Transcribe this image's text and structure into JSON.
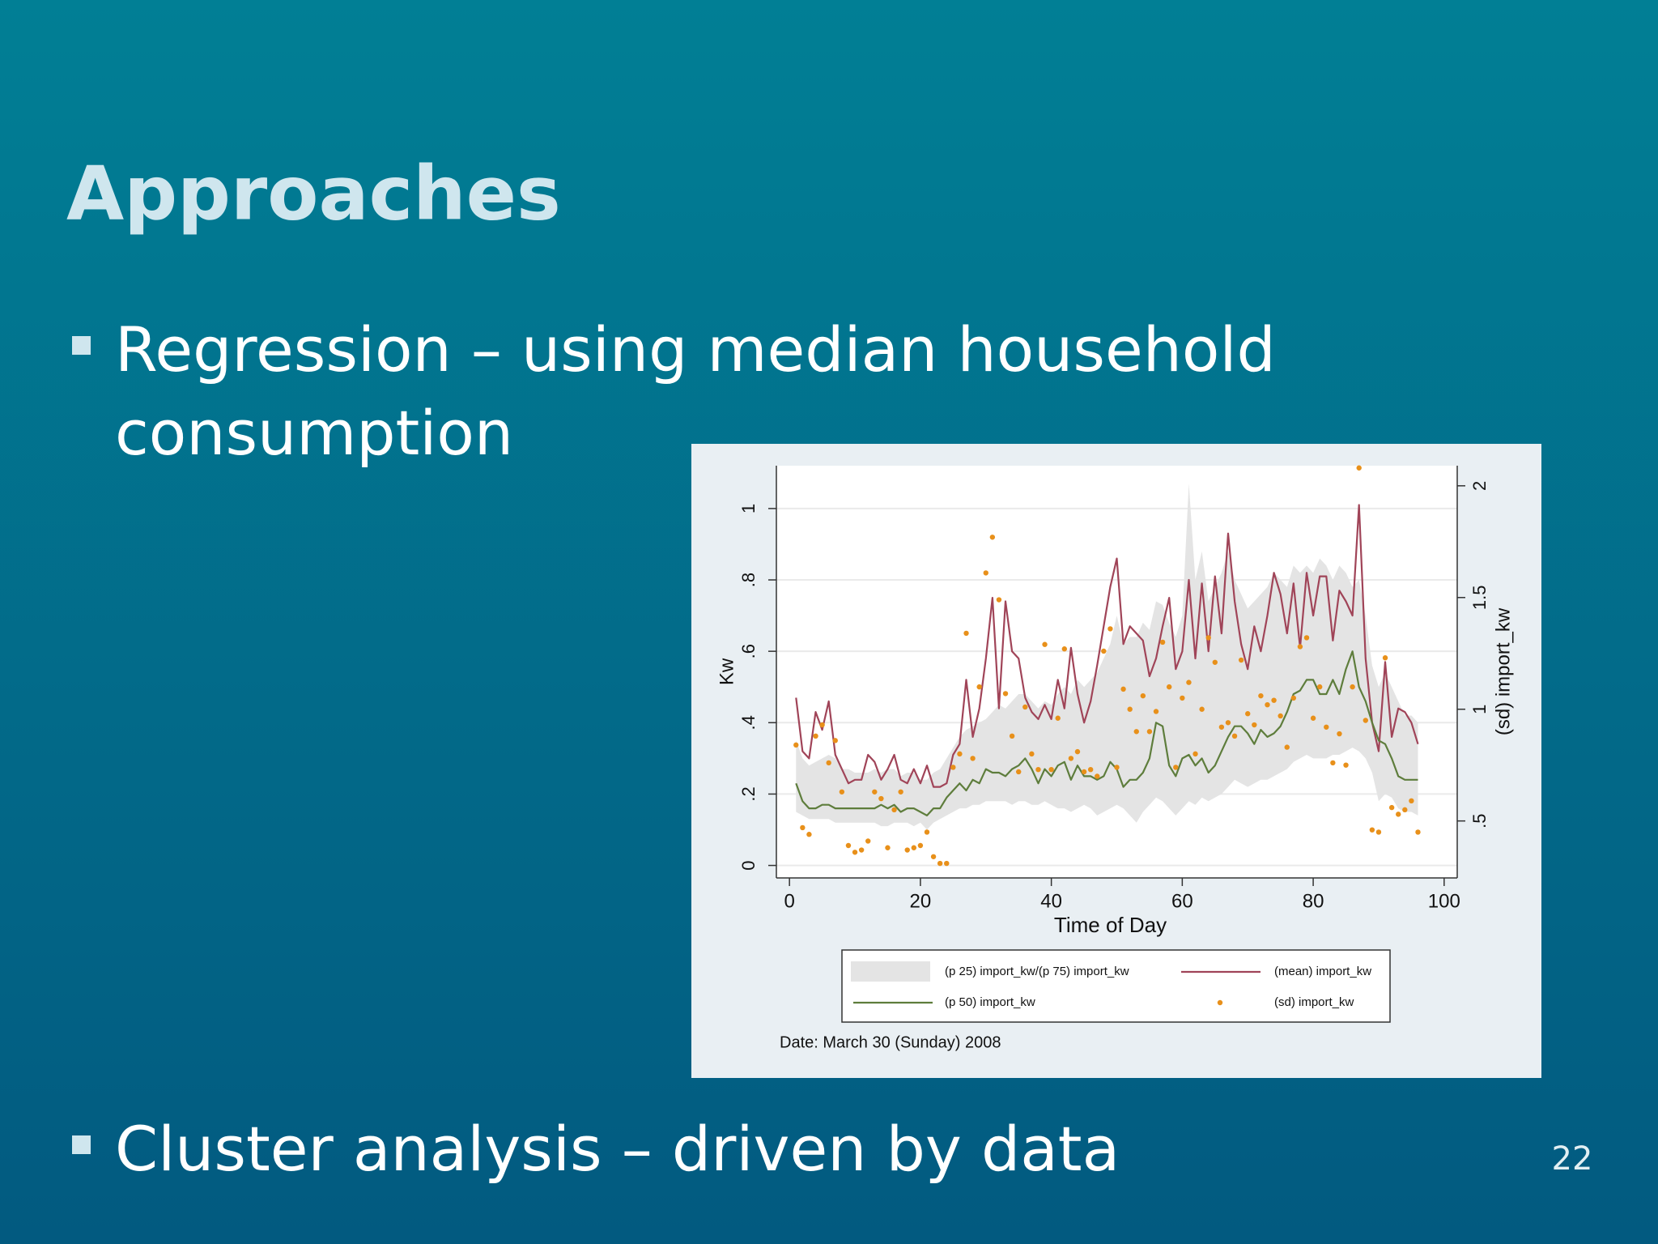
{
  "slide": {
    "title": "Approaches",
    "bullets": [
      {
        "lines": [
          "Regression – using median household",
          "consumption"
        ]
      },
      {
        "lines": [
          "Cluster analysis – driven by data"
        ]
      }
    ],
    "page_number": "22"
  },
  "chart_data": {
    "type": "line",
    "y_label": "Kw",
    "y2_label": "(sd) import_kw",
    "x_label": "Time of Day",
    "note": "Date: March 30 (Sunday) 2008",
    "xlim": [
      -2,
      102
    ],
    "xticks": [
      0,
      20,
      40,
      60,
      80,
      100
    ],
    "ylim": [
      -0.035,
      1.12
    ],
    "yticks": [
      0,
      {
        "value": 0.2,
        "label": ".2"
      },
      {
        "value": 0.4,
        "label": ".4"
      },
      {
        "value": 0.6,
        "label": ".6"
      },
      {
        "value": 0.8,
        "label": ".8"
      },
      1
    ],
    "y2lim": [
      0.245,
      2.09
    ],
    "y2ticks": [
      {
        "value": 0.5,
        "label": ".5"
      },
      1,
      1.5,
      2
    ],
    "grid": true,
    "x": [
      1,
      2,
      3,
      4,
      5,
      6,
      7,
      8,
      9,
      10,
      11,
      12,
      13,
      14,
      15,
      16,
      17,
      18,
      19,
      20,
      21,
      22,
      23,
      24,
      25,
      26,
      27,
      28,
      29,
      30,
      31,
      32,
      33,
      34,
      35,
      36,
      37,
      38,
      39,
      40,
      41,
      42,
      43,
      44,
      45,
      46,
      47,
      48,
      49,
      50,
      51,
      52,
      53,
      54,
      55,
      56,
      57,
      58,
      59,
      60,
      61,
      62,
      63,
      64,
      65,
      66,
      67,
      68,
      69,
      70,
      71,
      72,
      73,
      74,
      75,
      76,
      77,
      78,
      79,
      80,
      81,
      82,
      83,
      84,
      85,
      86,
      87,
      88,
      89,
      90,
      91,
      92,
      93,
      94,
      95,
      96
    ],
    "band": {
      "name": "(p 25) import_kw/(p 75) import_kw",
      "color": "#e4e4e4",
      "lower": [
        0.15,
        0.14,
        0.13,
        0.13,
        0.13,
        0.13,
        0.12,
        0.12,
        0.12,
        0.12,
        0.12,
        0.12,
        0.12,
        0.11,
        0.11,
        0.12,
        0.12,
        0.12,
        0.11,
        0.12,
        0.1,
        0.12,
        0.13,
        0.14,
        0.15,
        0.16,
        0.16,
        0.17,
        0.17,
        0.18,
        0.18,
        0.18,
        0.18,
        0.17,
        0.18,
        0.18,
        0.17,
        0.17,
        0.18,
        0.17,
        0.16,
        0.16,
        0.15,
        0.16,
        0.17,
        0.16,
        0.14,
        0.15,
        0.16,
        0.17,
        0.16,
        0.14,
        0.12,
        0.15,
        0.17,
        0.19,
        0.18,
        0.16,
        0.14,
        0.16,
        0.18,
        0.17,
        0.19,
        0.18,
        0.19,
        0.2,
        0.22,
        0.24,
        0.23,
        0.22,
        0.23,
        0.24,
        0.24,
        0.25,
        0.26,
        0.27,
        0.29,
        0.3,
        0.31,
        0.3,
        0.3,
        0.3,
        0.31,
        0.31,
        0.32,
        0.33,
        0.32,
        0.3,
        0.26,
        0.18,
        0.2,
        0.19,
        0.16,
        0.15,
        0.15,
        0.14
      ],
      "upper": [
        0.35,
        0.3,
        0.28,
        0.29,
        0.3,
        0.31,
        0.3,
        0.27,
        0.27,
        0.26,
        0.26,
        0.26,
        0.27,
        0.26,
        0.27,
        0.27,
        0.25,
        0.26,
        0.26,
        0.24,
        0.24,
        0.26,
        0.27,
        0.3,
        0.33,
        0.36,
        0.38,
        0.39,
        0.4,
        0.41,
        0.43,
        0.45,
        0.44,
        0.46,
        0.48,
        0.48,
        0.46,
        0.44,
        0.46,
        0.45,
        0.48,
        0.5,
        0.48,
        0.52,
        0.5,
        0.52,
        0.54,
        0.58,
        0.62,
        0.7,
        0.62,
        0.64,
        0.64,
        0.68,
        0.66,
        0.74,
        0.73,
        0.68,
        0.64,
        0.7,
        1.07,
        0.8,
        0.88,
        0.74,
        0.78,
        0.82,
        0.88,
        0.8,
        0.76,
        0.72,
        0.74,
        0.76,
        0.78,
        0.82,
        0.8,
        0.78,
        0.84,
        0.82,
        0.84,
        0.82,
        0.86,
        0.84,
        0.8,
        0.84,
        0.82,
        0.78,
        0.8,
        0.7,
        0.56,
        0.5,
        0.54,
        0.5,
        0.46,
        0.42,
        0.42,
        0.4
      ]
    },
    "series": [
      {
        "name": "(mean) import_kw",
        "color": "#a04458",
        "values": [
          0.47,
          0.32,
          0.3,
          0.43,
          0.38,
          0.46,
          0.31,
          0.27,
          0.23,
          0.24,
          0.24,
          0.31,
          0.29,
          0.24,
          0.27,
          0.31,
          0.24,
          0.23,
          0.27,
          0.23,
          0.28,
          0.22,
          0.22,
          0.23,
          0.31,
          0.34,
          0.52,
          0.36,
          0.44,
          0.58,
          0.75,
          0.44,
          0.74,
          0.6,
          0.58,
          0.47,
          0.43,
          0.41,
          0.45,
          0.41,
          0.52,
          0.44,
          0.61,
          0.48,
          0.4,
          0.46,
          0.56,
          0.67,
          0.78,
          0.86,
          0.62,
          0.67,
          0.65,
          0.63,
          0.53,
          0.58,
          0.67,
          0.75,
          0.55,
          0.6,
          0.8,
          0.58,
          0.79,
          0.6,
          0.81,
          0.65,
          0.93,
          0.74,
          0.62,
          0.55,
          0.67,
          0.6,
          0.7,
          0.82,
          0.76,
          0.65,
          0.79,
          0.61,
          0.82,
          0.7,
          0.81,
          0.81,
          0.63,
          0.77,
          0.74,
          0.7,
          1.01,
          0.58,
          0.4,
          0.32,
          0.57,
          0.36,
          0.44,
          0.43,
          0.4,
          0.34
        ]
      },
      {
        "name": "(p 50) import_kw",
        "color": "#5e7d3c",
        "values": [
          0.23,
          0.18,
          0.16,
          0.16,
          0.17,
          0.17,
          0.16,
          0.16,
          0.16,
          0.16,
          0.16,
          0.16,
          0.16,
          0.17,
          0.16,
          0.17,
          0.15,
          0.16,
          0.16,
          0.15,
          0.14,
          0.16,
          0.16,
          0.19,
          0.21,
          0.23,
          0.21,
          0.24,
          0.23,
          0.27,
          0.26,
          0.26,
          0.25,
          0.27,
          0.28,
          0.3,
          0.27,
          0.23,
          0.27,
          0.25,
          0.28,
          0.29,
          0.24,
          0.28,
          0.25,
          0.25,
          0.24,
          0.25,
          0.29,
          0.27,
          0.22,
          0.24,
          0.24,
          0.26,
          0.3,
          0.4,
          0.39,
          0.28,
          0.25,
          0.3,
          0.31,
          0.28,
          0.3,
          0.26,
          0.28,
          0.32,
          0.36,
          0.39,
          0.39,
          0.37,
          0.34,
          0.38,
          0.36,
          0.37,
          0.39,
          0.43,
          0.48,
          0.49,
          0.52,
          0.52,
          0.48,
          0.48,
          0.52,
          0.48,
          0.55,
          0.6,
          0.5,
          0.46,
          0.4,
          0.35,
          0.34,
          0.3,
          0.25,
          0.24,
          0.24,
          0.24
        ]
      },
      {
        "name": "(sd) import_kw",
        "color": "#e8901a",
        "axis": "y2",
        "style": "scatter",
        "values": [
          0.84,
          0.47,
          0.44,
          0.88,
          0.93,
          0.76,
          0.86,
          0.63,
          0.39,
          0.36,
          0.37,
          0.41,
          0.63,
          0.6,
          0.38,
          0.55,
          0.63,
          0.37,
          0.38,
          0.39,
          0.45,
          0.34,
          0.31,
          0.31,
          0.74,
          0.8,
          1.34,
          0.78,
          1.1,
          1.61,
          1.77,
          1.49,
          1.07,
          0.88,
          0.72,
          1.01,
          0.8,
          0.73,
          1.29,
          0.73,
          0.96,
          1.27,
          0.78,
          0.81,
          0.72,
          0.73,
          0.7,
          1.26,
          1.36,
          0.74,
          1.09,
          1.0,
          0.9,
          1.06,
          0.9,
          0.99,
          1.3,
          1.1,
          0.74,
          1.05,
          1.12,
          0.8,
          1.0,
          1.32,
          1.21,
          0.92,
          0.94,
          0.88,
          1.22,
          0.98,
          0.93,
          1.06,
          1.02,
          1.04,
          0.97,
          0.83,
          1.05,
          1.28,
          1.32,
          0.96,
          1.1,
          0.92,
          0.76,
          0.89,
          0.75,
          1.1,
          2.08,
          0.95,
          0.46,
          0.45,
          1.23,
          0.56,
          0.53,
          0.55,
          0.59,
          0.45
        ]
      }
    ]
  }
}
